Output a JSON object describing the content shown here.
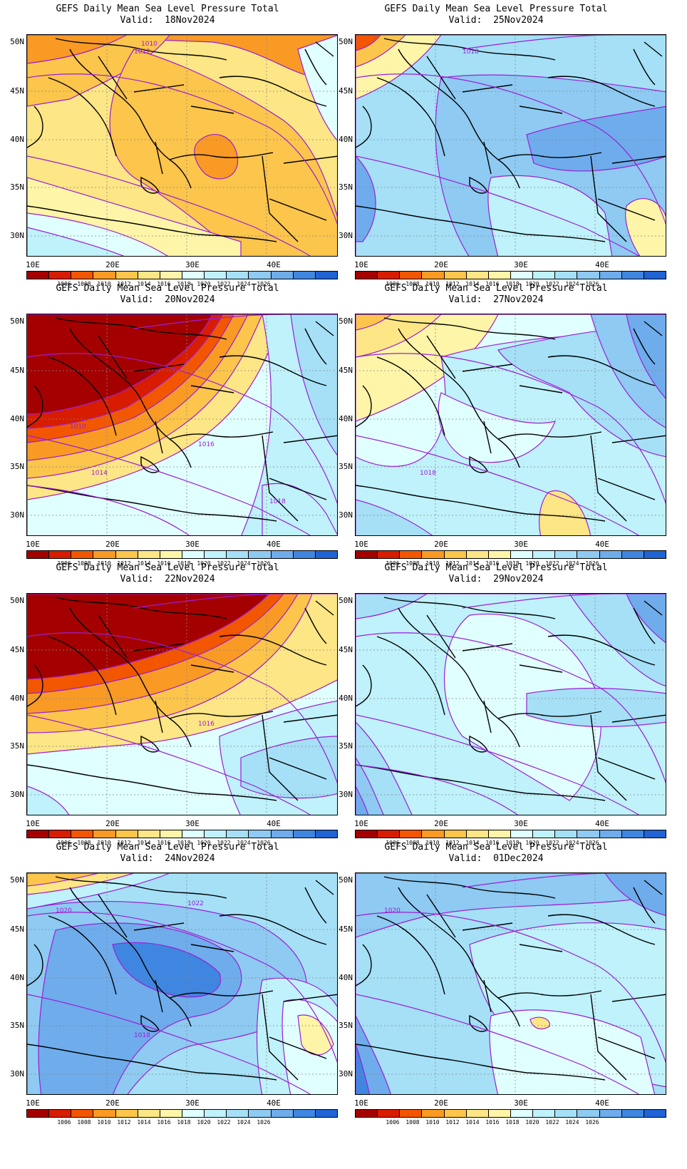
{
  "title_line1": "GEFS Daily Mean Sea Level Pressure Total",
  "valid_prefix": "Valid:",
  "lat_labels": [
    "50N",
    "45N",
    "40N",
    "35N",
    "30N"
  ],
  "lon_labels": [
    "10E",
    "20E",
    "30E",
    "40E"
  ],
  "colorbar": {
    "colors": [
      "#a50000",
      "#d81c00",
      "#f25600",
      "#f99a24",
      "#fcc54b",
      "#fde685",
      "#fff5a8",
      "#e0ffff",
      "#bff2fb",
      "#a5e0f7",
      "#8ecaf2",
      "#6eacec",
      "#3f86e0",
      "#1f63d4"
    ],
    "labels": [
      "1006",
      "1008",
      "1010",
      "1012",
      "1014",
      "1016",
      "1018",
      "1020",
      "1022",
      "1024",
      "1026"
    ]
  },
  "panels": [
    {
      "id": "p18nov",
      "date": "18Nov2024",
      "base": "#fde685",
      "contour_labels": [
        "1010",
        "1012"
      ]
    },
    {
      "id": "p25nov",
      "date": "25Nov2024",
      "base": "#8ecaf2",
      "contour_labels": [
        "1018"
      ]
    },
    {
      "id": "p20nov",
      "date": "20Nov2024",
      "base": "#a50000",
      "contour_labels": [
        "1010",
        "1014",
        "1016",
        "1018"
      ]
    },
    {
      "id": "p27nov",
      "date": "27Nov2024",
      "base": "#bff2fb",
      "contour_labels": [
        "1018"
      ]
    },
    {
      "id": "p22nov",
      "date": "22Nov2024",
      "base": "#a50000",
      "contour_labels": [
        "1016"
      ]
    },
    {
      "id": "p29nov",
      "date": "29Nov2024",
      "base": "#bff2fb",
      "contour_labels": []
    },
    {
      "id": "p24nov",
      "date": "24Nov2024",
      "base": "#8ecaf2",
      "contour_labels": [
        "1018",
        "1020",
        "1022"
      ]
    },
    {
      "id": "p01dec",
      "date": "01Dec2024",
      "base": "#a5e0f7",
      "contour_labels": [
        "1020"
      ]
    }
  ]
}
